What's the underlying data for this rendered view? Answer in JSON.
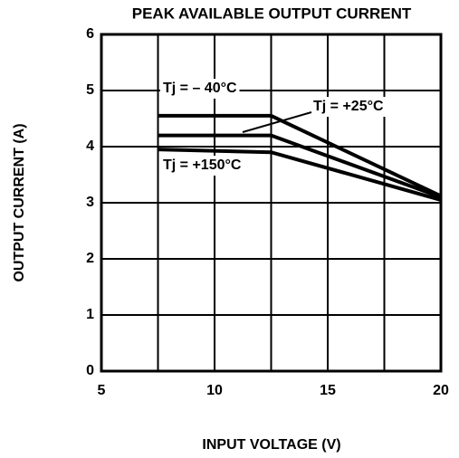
{
  "chart_data": {
    "type": "line",
    "title": "PEAK AVAILABLE OUTPUT CURRENT",
    "x_label": "INPUT VOLTAGE (V)",
    "y_label": "OUTPUT CURRENT (A)",
    "x": [
      7.5,
      12.5,
      20
    ],
    "series": [
      {
        "name": "Tj = – 40°C",
        "color": "#000000",
        "values": [
          4.55,
          4.55,
          3.12
        ]
      },
      {
        "name": "Tj = +25°C",
        "color": "#000000",
        "values": [
          4.2,
          4.2,
          3.1
        ]
      },
      {
        "name": "Tj = +150°C",
        "color": "#000000",
        "values": [
          3.95,
          3.9,
          3.05
        ]
      }
    ],
    "xlim": [
      5,
      20
    ],
    "xticks": [
      5,
      10,
      15,
      20
    ],
    "x_grid_minor": [
      7.5,
      12.5,
      17.5
    ],
    "ylim": [
      0,
      6
    ],
    "yticks": [
      0,
      1,
      2,
      3,
      4,
      5,
      6
    ],
    "grid": true
  }
}
